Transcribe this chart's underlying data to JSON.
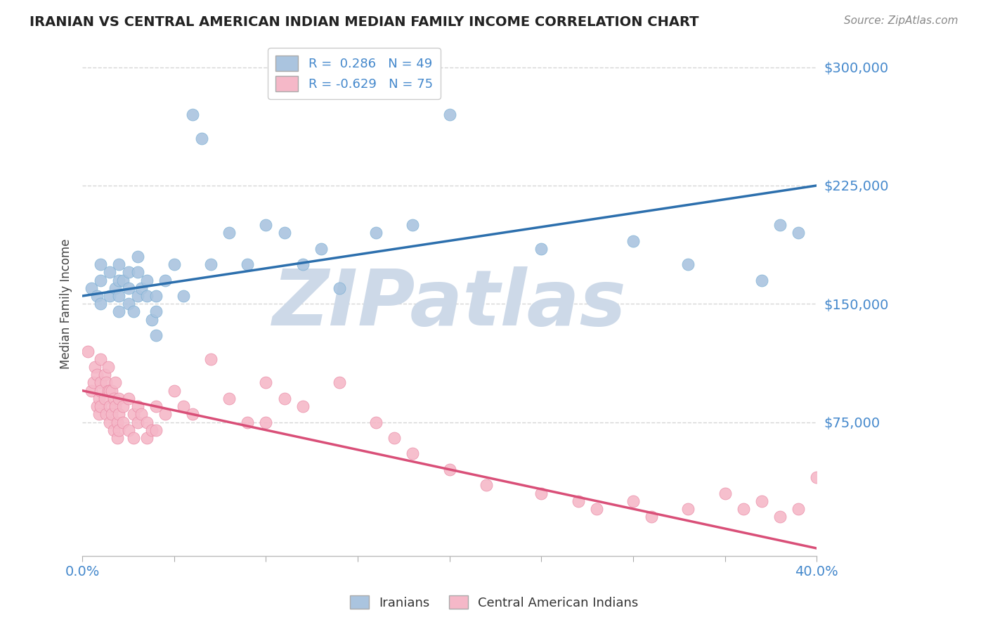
{
  "title": "IRANIAN VS CENTRAL AMERICAN INDIAN MEDIAN FAMILY INCOME CORRELATION CHART",
  "source": "Source: ZipAtlas.com",
  "ylabel": "Median Family Income",
  "xlim": [
    0.0,
    0.4
  ],
  "ylim": [
    -10000,
    310000
  ],
  "yticks": [
    75000,
    150000,
    225000,
    300000
  ],
  "xticks": [
    0.0,
    0.05,
    0.1,
    0.15,
    0.2,
    0.25,
    0.3,
    0.35,
    0.4
  ],
  "series1_name": "Iranians",
  "series1_R": 0.286,
  "series1_N": 49,
  "series1_color": "#aac4df",
  "series1_edge_color": "#7aafd4",
  "series1_line_color": "#2c6fad",
  "series2_name": "Central American Indians",
  "series2_R": -0.629,
  "series2_N": 75,
  "series2_color": "#f5b8c8",
  "series2_edge_color": "#e888a4",
  "series2_line_color": "#d94f78",
  "background_color": "#ffffff",
  "grid_color": "#cccccc",
  "axis_label_color": "#4488cc",
  "title_color": "#222222",
  "watermark_color": "#cdd9e8",
  "watermark_text": "ZIPatlas",
  "trend1_x0": 0.0,
  "trend1_y0": 155000,
  "trend1_x1": 0.4,
  "trend1_y1": 225000,
  "trend2_x0": 0.0,
  "trend2_y0": 95000,
  "trend2_x1": 0.4,
  "trend2_y1": -5000,
  "iranians_x": [
    0.005,
    0.008,
    0.01,
    0.01,
    0.01,
    0.015,
    0.015,
    0.018,
    0.02,
    0.02,
    0.02,
    0.02,
    0.022,
    0.025,
    0.025,
    0.025,
    0.028,
    0.03,
    0.03,
    0.03,
    0.032,
    0.035,
    0.035,
    0.038,
    0.04,
    0.04,
    0.04,
    0.045,
    0.05,
    0.055,
    0.06,
    0.065,
    0.07,
    0.08,
    0.09,
    0.1,
    0.11,
    0.12,
    0.13,
    0.14,
    0.16,
    0.18,
    0.2,
    0.25,
    0.3,
    0.33,
    0.37,
    0.38,
    0.39
  ],
  "iranians_y": [
    160000,
    155000,
    175000,
    165000,
    150000,
    170000,
    155000,
    160000,
    165000,
    175000,
    155000,
    145000,
    165000,
    170000,
    160000,
    150000,
    145000,
    180000,
    170000,
    155000,
    160000,
    165000,
    155000,
    140000,
    155000,
    145000,
    130000,
    165000,
    175000,
    155000,
    270000,
    255000,
    175000,
    195000,
    175000,
    200000,
    195000,
    175000,
    185000,
    160000,
    195000,
    200000,
    270000,
    185000,
    190000,
    175000,
    165000,
    200000,
    195000
  ],
  "ca_indians_x": [
    0.003,
    0.005,
    0.006,
    0.007,
    0.008,
    0.008,
    0.009,
    0.009,
    0.01,
    0.01,
    0.01,
    0.01,
    0.012,
    0.012,
    0.013,
    0.013,
    0.014,
    0.014,
    0.015,
    0.015,
    0.015,
    0.016,
    0.016,
    0.017,
    0.017,
    0.018,
    0.018,
    0.019,
    0.019,
    0.02,
    0.02,
    0.02,
    0.022,
    0.022,
    0.025,
    0.025,
    0.028,
    0.028,
    0.03,
    0.03,
    0.032,
    0.035,
    0.035,
    0.038,
    0.04,
    0.04,
    0.045,
    0.05,
    0.055,
    0.06,
    0.07,
    0.08,
    0.09,
    0.1,
    0.1,
    0.11,
    0.12,
    0.14,
    0.16,
    0.17,
    0.18,
    0.2,
    0.22,
    0.25,
    0.27,
    0.28,
    0.3,
    0.31,
    0.33,
    0.35,
    0.36,
    0.37,
    0.38,
    0.39,
    0.4
  ],
  "ca_indians_y": [
    120000,
    95000,
    100000,
    110000,
    85000,
    105000,
    90000,
    80000,
    100000,
    115000,
    95000,
    85000,
    105000,
    90000,
    100000,
    80000,
    95000,
    110000,
    95000,
    85000,
    75000,
    95000,
    80000,
    90000,
    70000,
    100000,
    85000,
    75000,
    65000,
    90000,
    80000,
    70000,
    85000,
    75000,
    90000,
    70000,
    80000,
    65000,
    85000,
    75000,
    80000,
    65000,
    75000,
    70000,
    85000,
    70000,
    80000,
    95000,
    85000,
    80000,
    115000,
    90000,
    75000,
    100000,
    75000,
    90000,
    85000,
    100000,
    75000,
    65000,
    55000,
    45000,
    35000,
    30000,
    25000,
    20000,
    25000,
    15000,
    20000,
    30000,
    20000,
    25000,
    15000,
    20000,
    40000
  ]
}
